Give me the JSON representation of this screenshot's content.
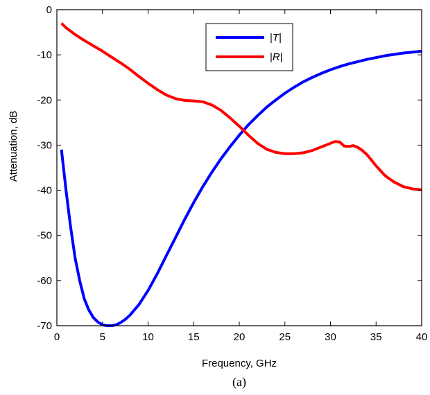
{
  "chart_data": {
    "type": "line",
    "title": "",
    "xlabel": "Frequency, GHz",
    "ylabel": "Attenuation, dB",
    "caption": "(a)",
    "xlim": [
      0,
      40
    ],
    "ylim": [
      -70,
      0
    ],
    "xticks": [
      0,
      5,
      10,
      15,
      20,
      25,
      30,
      35,
      40
    ],
    "yticks": [
      0,
      -10,
      -20,
      -30,
      -40,
      -50,
      -60,
      -70
    ],
    "grid": false,
    "legend": {
      "placement": "top-center"
    },
    "series": [
      {
        "name": "|T|",
        "name_parts": [
          "|",
          "T",
          "|"
        ],
        "color": "#0000ff",
        "x": [
          0.5,
          1,
          1.5,
          2,
          2.5,
          3,
          3.5,
          4,
          4.5,
          5,
          5.5,
          6,
          6.5,
          7,
          7.5,
          8,
          9,
          10,
          11,
          12,
          13,
          14,
          15,
          16,
          17,
          18,
          19,
          20,
          21,
          22,
          23,
          24,
          25,
          26,
          27,
          28,
          29,
          30,
          31,
          32,
          33,
          34,
          35,
          36,
          37,
          38,
          39,
          40
        ],
        "y": [
          -31,
          -40,
          -48,
          -55,
          -60,
          -64,
          -66.5,
          -68.2,
          -69.2,
          -69.8,
          -70,
          -70,
          -69.8,
          -69.3,
          -68.6,
          -67.7,
          -65.3,
          -62.2,
          -58.5,
          -54.5,
          -50.5,
          -46.5,
          -42.7,
          -39.2,
          -36,
          -33,
          -30.3,
          -27.8,
          -25.5,
          -23.5,
          -21.6,
          -20,
          -18.5,
          -17.2,
          -16,
          -15,
          -14.1,
          -13.3,
          -12.6,
          -12,
          -11.5,
          -11,
          -10.6,
          -10.2,
          -9.9,
          -9.6,
          -9.4,
          -9.2
        ]
      },
      {
        "name": "|R|",
        "name_parts": [
          "|",
          "R",
          "|"
        ],
        "color": "#ff0000",
        "x": [
          0.5,
          1,
          2,
          3,
          4,
          5,
          6,
          7,
          8,
          9,
          10,
          11,
          12,
          13,
          14,
          15,
          16,
          17,
          18,
          19,
          20,
          21,
          22,
          23,
          24,
          25,
          26,
          27,
          28,
          29,
          30,
          30.5,
          31,
          31.5,
          32,
          32.5,
          33,
          33.5,
          34,
          35,
          36,
          37,
          38,
          39,
          40
        ],
        "y": [
          -3,
          -4,
          -5.5,
          -6.8,
          -8,
          -9.2,
          -10.5,
          -11.8,
          -13.2,
          -14.8,
          -16.3,
          -17.7,
          -18.9,
          -19.7,
          -20.1,
          -20.2,
          -20.4,
          -21.1,
          -22.3,
          -24,
          -25.8,
          -27.8,
          -29.6,
          -30.9,
          -31.6,
          -31.9,
          -31.9,
          -31.7,
          -31.2,
          -30.4,
          -29.6,
          -29.2,
          -29.3,
          -30.2,
          -30.3,
          -30.1,
          -30.5,
          -31.2,
          -32.1,
          -34.6,
          -36.8,
          -38.2,
          -39.2,
          -39.7,
          -39.9
        ]
      }
    ]
  }
}
